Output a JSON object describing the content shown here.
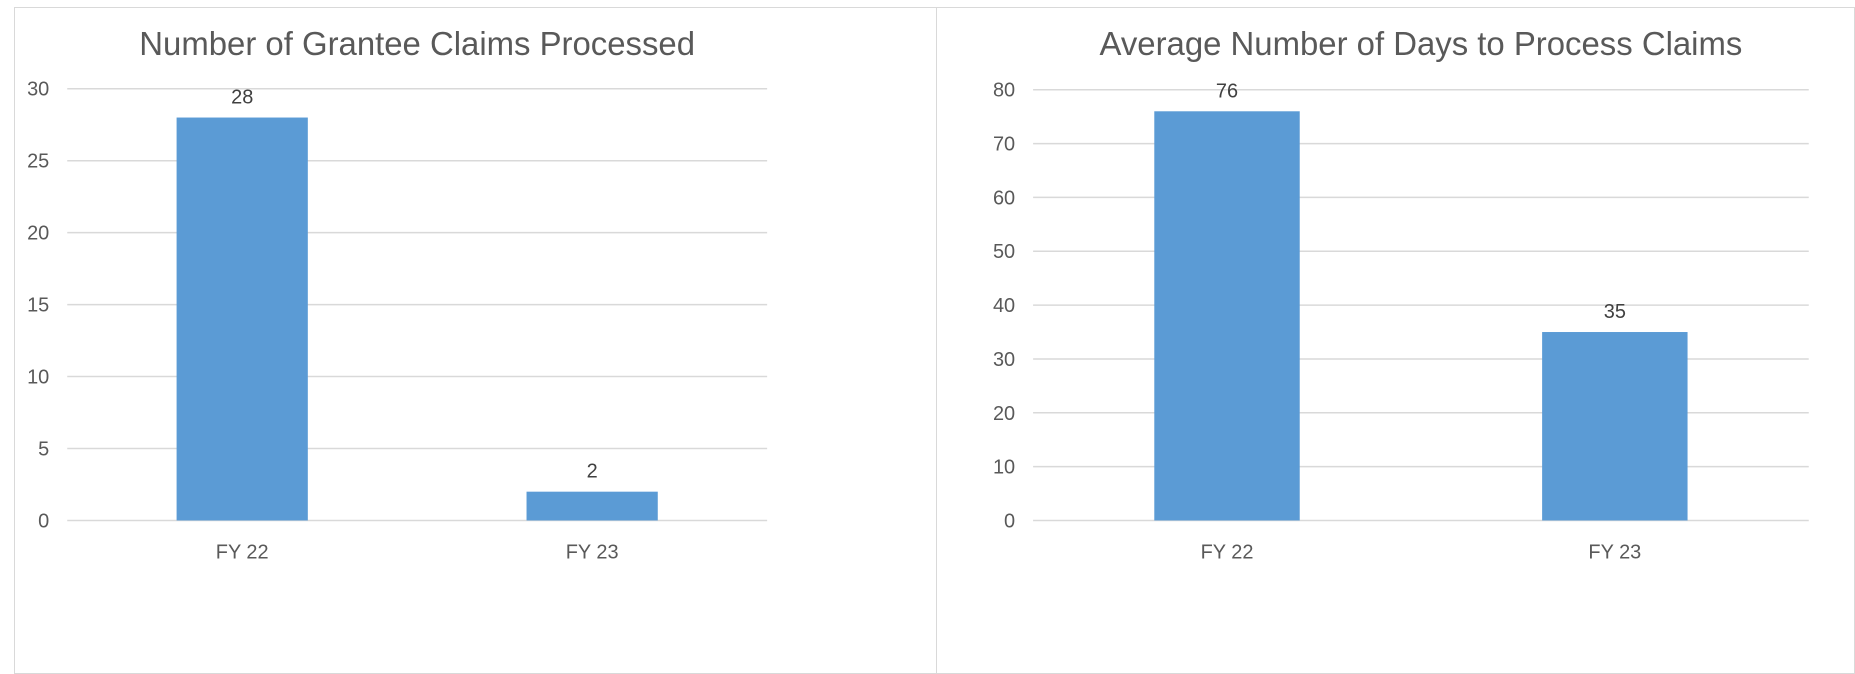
{
  "chart_data": [
    {
      "type": "bar",
      "title": "Number of Grantee Claims Processed",
      "xlabel": "",
      "ylabel": "",
      "categories": [
        "FY 22",
        "FY 23"
      ],
      "values": [
        28,
        2
      ],
      "data_labels": [
        "28",
        "2"
      ],
      "ylim": [
        0,
        30
      ],
      "yticks": [
        0,
        5,
        10,
        15,
        20,
        25,
        30
      ],
      "grid": true,
      "legend": "none",
      "bar_color": "#5b9bd5"
    },
    {
      "type": "bar",
      "title": "Average Number of Days to Process Claims",
      "xlabel": "",
      "ylabel": "",
      "categories": [
        "FY 22",
        "FY 23"
      ],
      "values": [
        76,
        35
      ],
      "data_labels": [
        "76",
        "35"
      ],
      "ylim": [
        0,
        80
      ],
      "yticks": [
        0,
        10,
        20,
        30,
        40,
        50,
        60,
        70,
        80
      ],
      "grid": true,
      "legend": "none",
      "bar_color": "#5b9bd5"
    }
  ]
}
